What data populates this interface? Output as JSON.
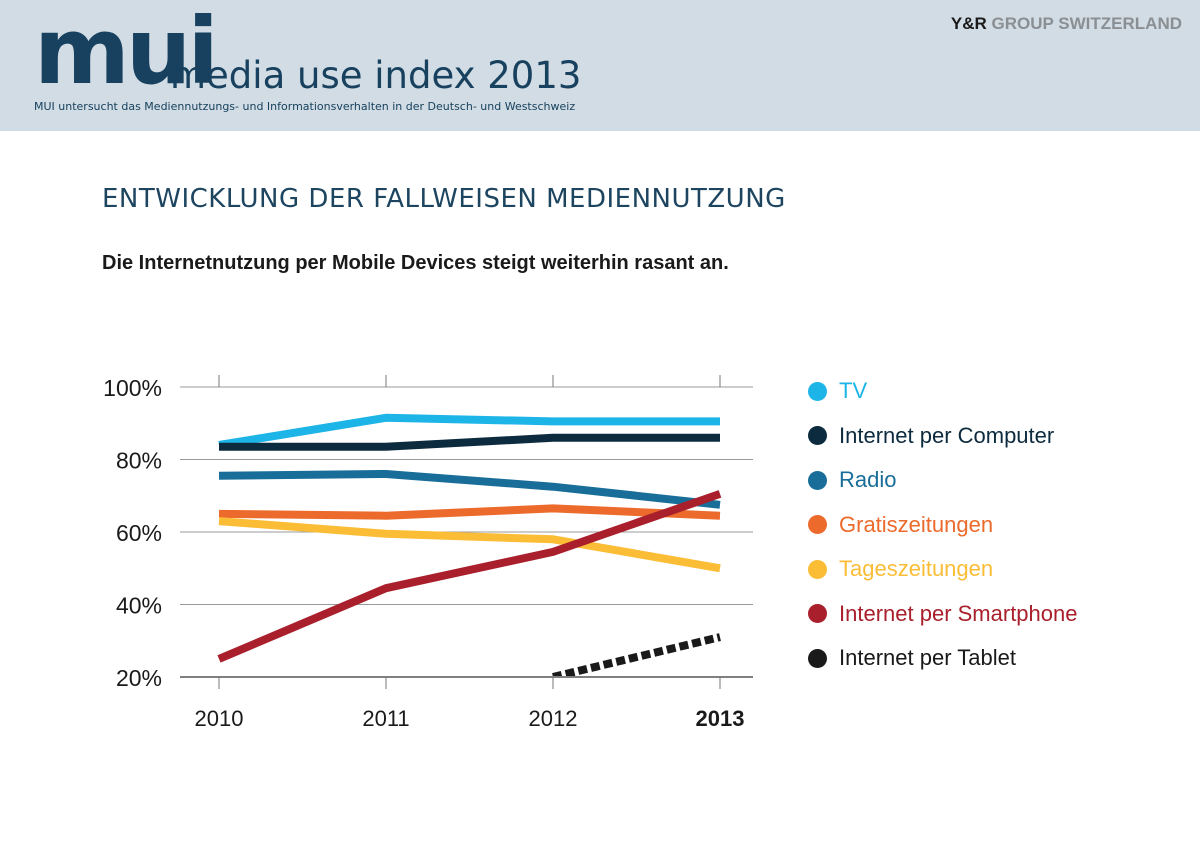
{
  "header": {
    "logo_text": "mui",
    "logo_subtitle": "media use index 2013",
    "description": "MUI untersucht das Mediennutzungs- und Informationsverhalten in der Deutsch- und Westschweiz",
    "brand_primary": "Y&R",
    "brand_secondary": "GROUP SWITZERLAND"
  },
  "chart_data": {
    "type": "line",
    "title": "ENTWICKLUNG DER FALLWEISEN MEDIENNUTZUNG",
    "subtitle": "Die Internetnutzung per Mobile Devices steigt weiterhin rasant an.",
    "categories": [
      "2010",
      "2011",
      "2012",
      "2013"
    ],
    "highlight_category": "2013",
    "y_ticks": [
      100,
      80,
      60,
      40,
      20
    ],
    "y_tick_labels": [
      "100%",
      "80%",
      "60%",
      "40%",
      "20%"
    ],
    "ylim": [
      20,
      100
    ],
    "grid": true,
    "legend_position": "right",
    "series": [
      {
        "name": "TV",
        "color": "#1db5e8",
        "values": [
          84,
          91.5,
          90.5,
          90.5
        ]
      },
      {
        "name": "Internet per Computer",
        "color": "#0d2b3e",
        "values": [
          83.5,
          83.5,
          86,
          86
        ]
      },
      {
        "name": "Radio",
        "color": "#186e99",
        "values": [
          75.5,
          76,
          72.5,
          67.5
        ]
      },
      {
        "name": "Gratiszeitungen",
        "color": "#ec6a2c",
        "values": [
          65,
          64.5,
          66.5,
          64.5
        ]
      },
      {
        "name": "Tageszeitungen",
        "color": "#fbbd35",
        "values": [
          63,
          59.5,
          58,
          50
        ]
      },
      {
        "name": "Internet per Smartphone",
        "color": "#a91f2b",
        "values": [
          25,
          44.5,
          54.5,
          70.5
        ]
      },
      {
        "name": "Internet per Tablet",
        "color": "#1a1a1a",
        "dashed": true,
        "values": [
          null,
          null,
          20,
          31
        ]
      }
    ]
  }
}
